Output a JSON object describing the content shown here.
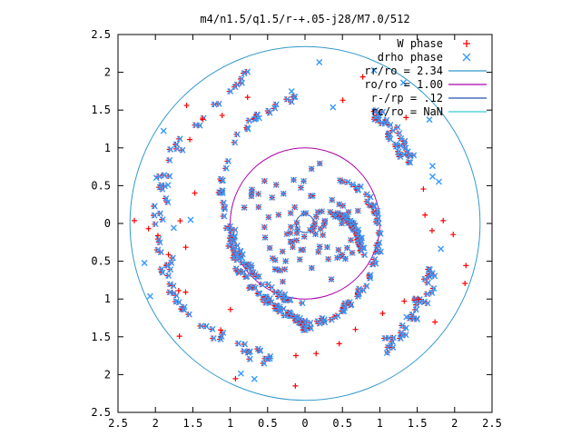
{
  "chart_data": {
    "type": "scatter",
    "title": "m4/n1.5/q1.5/r-+.05-j28/M7.0/512",
    "xlim": [
      -2.5,
      2.5
    ],
    "ylim": [
      -2.5,
      2.5
    ],
    "x_ticks": [
      -2.5,
      -2,
      -1.5,
      -1,
      -0.5,
      0,
      0.5,
      1,
      1.5,
      2,
      2.5
    ],
    "y_ticks": [
      2.5,
      2,
      1.5,
      1,
      0.5,
      0,
      -0.5,
      -1,
      -1.5,
      -2,
      -2.5
    ],
    "x_tick_labels": [
      "2.5",
      "2",
      "1.5",
      "1",
      "0.5",
      "0",
      "0.5",
      "1",
      "1.5",
      "2",
      "2.5"
    ],
    "y_tick_labels": [
      "2.5",
      "2",
      "1.5",
      "1",
      "0.5",
      "0",
      "0.5",
      "1",
      "1.5",
      "2",
      "2.5"
    ],
    "legend_placement": "top-right",
    "series": [
      {
        "name": "W phase",
        "kind": "points",
        "marker": "plus",
        "color": "#ff0000"
      },
      {
        "name": "drho phase",
        "kind": "points",
        "marker": "cross",
        "color": "#3399ff"
      }
    ],
    "circles": [
      {
        "name": "rr/ro = 2.34",
        "radius": 2.34,
        "color": "#3399cc"
      },
      {
        "name": "ro/ro = 1.00",
        "radius": 1.0,
        "color": "#aa00aa"
      },
      {
        "name": "r-/rp = .12",
        "radius": 0.12,
        "color": "#2255aa"
      },
      {
        "name": "rc/ro = NaN",
        "radius": null,
        "color": "#33cccc"
      }
    ],
    "spiral_arms": [
      {
        "angles_deg": [
          95,
          120,
          145,
          170,
          195,
          220,
          245,
          268
        ],
        "radii": [
          1.65,
          1.52,
          1.32,
          1.12,
          0.98,
          0.95,
          0.98,
          1.08
        ]
      },
      {
        "angles_deg": [
          45,
          15,
          -15,
          -45,
          -70,
          -92
        ],
        "radii": [
          0.82,
          0.92,
          1.02,
          1.12,
          1.25,
          1.38
        ]
      },
      {
        "angles_deg": [
          185,
          200,
          215,
          232,
          248,
          262,
          272
        ],
        "radii": [
          0.98,
          1.05,
          1.08,
          1.12,
          1.15,
          1.25,
          1.35
        ]
      },
      {
        "angles_deg": [
          -28,
          -10,
          5,
          18
        ],
        "radii": [
          0.86,
          0.7,
          0.55,
          0.42
        ]
      }
    ],
    "outer_arcs": [
      {
        "angles_deg": [
          110,
          125,
          140,
          155,
          170,
          185,
          198
        ],
        "radii": [
          2.1,
          2.05,
          2.0,
          2.0,
          1.95,
          1.95,
          1.9
        ]
      },
      {
        "angles_deg": [
          60,
          50,
          40,
          30
        ],
        "radii": [
          1.75,
          1.7,
          1.65,
          1.6
        ]
      },
      {
        "angles_deg": [
          -20,
          -32,
          -45,
          -58
        ],
        "radii": [
          1.8,
          1.85,
          1.9,
          1.95
        ]
      },
      {
        "angles_deg": [
          -105,
          -125,
          -145,
          -165
        ],
        "radii": [
          1.85,
          1.9,
          1.95,
          2.0
        ]
      }
    ]
  }
}
